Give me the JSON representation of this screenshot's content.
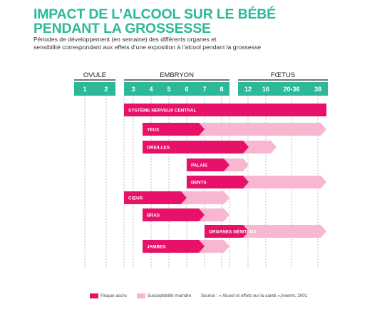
{
  "title": "IMPACT DE L’ALCOOL SUR LE BÉBÉ PENDANT LA GROSSESSE",
  "title_line1": "IMPACT DE L’ALCOOL SUR LE BÉBÉ",
  "title_line2": "PENDANT LA GROSSESSE",
  "subtitle_line1": "Périodes de développement (en semaine) des différents organes et",
  "subtitle_line2": "sensibilité correspondant aux effets d’une exposition à l’alcool pendant la grossesse",
  "colors": {
    "accent": "#2bb99a",
    "risk": "#e8116a",
    "susceptibility": "#f8b6d0"
  },
  "periods": [
    {
      "label": "OVULE",
      "weeks": [
        "1",
        "2"
      ]
    },
    {
      "label": "EMBRYON",
      "weeks": [
        "3",
        "4",
        "5",
        "6",
        "7",
        "8"
      ]
    },
    {
      "label": "FŒTUS",
      "weeks": [
        "12",
        "16",
        "20-36",
        "38"
      ]
    }
  ],
  "bars": [
    {
      "label": "SYSTÈME NERVEUX CENTRAL",
      "risk": [
        "3",
        "38"
      ],
      "susceptibility": null
    },
    {
      "label": "YEUX",
      "risk": [
        "4",
        "7"
      ],
      "susceptibility": [
        "7",
        "38"
      ]
    },
    {
      "label": "OREILLES",
      "risk": [
        "4",
        "12"
      ],
      "susceptibility": [
        "12",
        "16"
      ]
    },
    {
      "label": "PALAIS",
      "risk": [
        "6",
        "8"
      ],
      "susceptibility": [
        "8",
        "12"
      ]
    },
    {
      "label": "DENTS",
      "risk": [
        "6",
        "12"
      ],
      "susceptibility": [
        "12",
        "38"
      ]
    },
    {
      "label": "CŒUR",
      "risk": [
        "3",
        "6"
      ],
      "susceptibility": [
        "6",
        "8"
      ]
    },
    {
      "label": "BRAS",
      "risk": [
        "4",
        "7"
      ],
      "susceptibility": [
        "7",
        "8"
      ]
    },
    {
      "label": "ORGANES GÉNITAUX",
      "risk": [
        "7",
        "12"
      ],
      "susceptibility": [
        "12",
        "38"
      ]
    },
    {
      "label": "JAMBES",
      "risk": [
        "4",
        "7"
      ],
      "susceptibility": [
        "7",
        "8"
      ]
    }
  ],
  "legend": {
    "risk": "Risque accru",
    "susceptibility": "Susceptibilité moindre",
    "source": "Source : « Alcool et effets sur la santé »,Inserm, 2001"
  }
}
